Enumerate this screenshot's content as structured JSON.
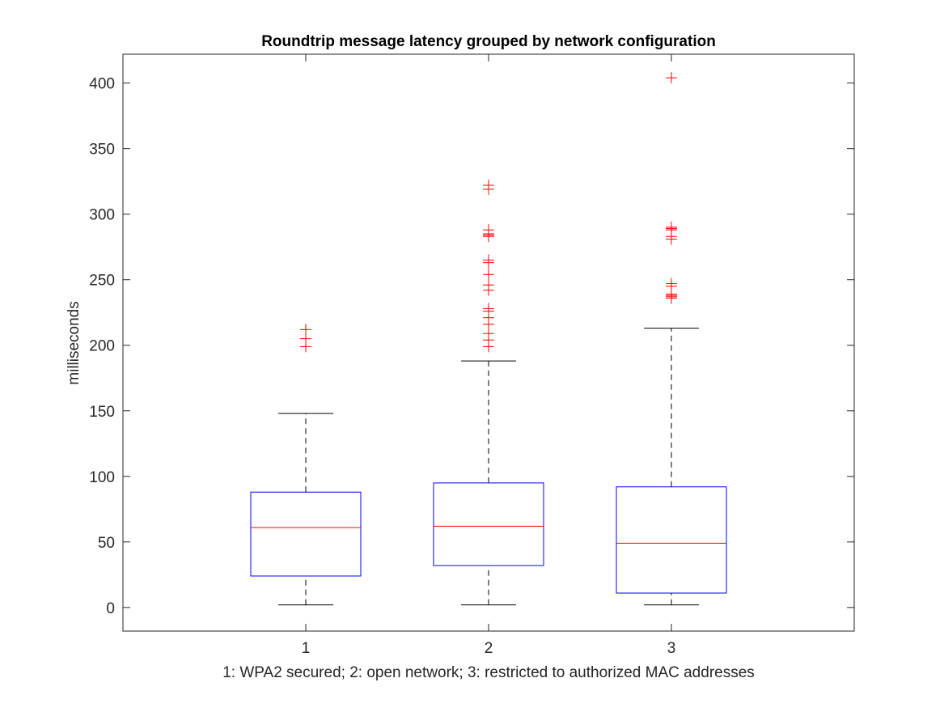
{
  "chart_data": {
    "type": "box",
    "title": "Roundtrip message latency grouped by network configuration",
    "xlabel": "1: WPA2 secured; 2: open network; 3: restricted to authorized MAC addresses",
    "ylabel": "milliseconds",
    "ylim": [
      -18,
      422
    ],
    "yticks": [
      0,
      50,
      100,
      150,
      200,
      250,
      300,
      350,
      400
    ],
    "categories": [
      "1",
      "2",
      "3"
    ],
    "grid": false,
    "legend": "none",
    "colors": {
      "box": "#0000ff",
      "median": "#ff0000",
      "whisker": "#000000",
      "outlier": "#ff0000",
      "axes": "#262626"
    },
    "boxes": [
      {
        "category": "1",
        "whisker_low": 2,
        "q1": 24,
        "median": 61,
        "q3": 88,
        "whisker_high": 148,
        "outliers": [
          199,
          205,
          212
        ]
      },
      {
        "category": "2",
        "whisker_low": 2,
        "q1": 32,
        "median": 62,
        "q3": 95,
        "whisker_high": 188,
        "outliers": [
          199,
          204,
          209,
          216,
          221,
          226,
          228,
          242,
          246,
          254,
          263,
          265,
          283,
          284,
          285,
          288,
          319,
          322
        ]
      },
      {
        "category": "3",
        "whisker_low": 2,
        "q1": 11,
        "median": 49,
        "q3": 92,
        "whisker_high": 213,
        "outliers": [
          236,
          237,
          238,
          239,
          245,
          247,
          281,
          283,
          288,
          289,
          290,
          404
        ]
      }
    ]
  }
}
